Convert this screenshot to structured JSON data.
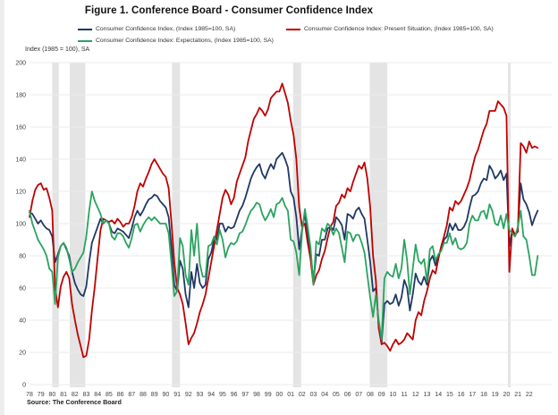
{
  "page": {
    "title": "Figure 1. Conference Board - Consumer Confidence Index",
    "y_axis_title": "Index (1985 = 100), SA",
    "source": "Source: The Conference Board"
  },
  "legend": {
    "left_items": [
      {
        "label": "Consumer Confidence Index, (Index 1985=100, SA)",
        "color": "#1f3864"
      },
      {
        "label": "Consumer Confidence Index: Expectations, (Index 1985=100, SA)",
        "color": "#2aa35f"
      }
    ],
    "right_items": [
      {
        "label": "Consumer Confidence Index: Present Situation, (Index 1985=100, SA)",
        "color": "#c00000"
      }
    ]
  },
  "chart_data": {
    "type": "line",
    "title": "Figure 1. Conference Board - Consumer Confidence Index",
    "ylabel": "Index (1985 = 100), SA",
    "ylim": [
      0,
      200
    ],
    "y_tick_step": 20,
    "grid": "horizontal",
    "legend_position": "top",
    "x_start_year": 1978,
    "x_step_years": 0.25,
    "x_tick_labels": [
      "78",
      "79",
      "80",
      "81",
      "82",
      "83",
      "84",
      "85",
      "86",
      "87",
      "88",
      "89",
      "90",
      "91",
      "92",
      "93",
      "94",
      "95",
      "96",
      "97",
      "98",
      "99",
      "00",
      "01",
      "02",
      "03",
      "04",
      "05",
      "06",
      "07",
      "08",
      "09",
      "10",
      "11",
      "12",
      "13",
      "14",
      "15",
      "16",
      "17",
      "18",
      "19",
      "20",
      "21",
      "22"
    ],
    "recession_bands_years": [
      [
        1980.0,
        1980.58
      ],
      [
        1981.54,
        1982.92
      ],
      [
        1990.54,
        1991.25
      ],
      [
        2001.21,
        2001.92
      ],
      [
        2007.96,
        2009.5
      ],
      [
        2020.12,
        2020.37
      ]
    ],
    "band_color": "#e4e4e4",
    "grid_color": "#ebebeb",
    "series": [
      {
        "name": "Consumer Confidence Index, (Index 1985=100, SA)",
        "color": "#1f3864",
        "values": [
          107,
          106,
          103,
          100,
          102,
          99,
          97,
          96,
          92,
          76,
          81,
          86,
          88,
          84,
          80,
          70,
          63,
          59,
          56,
          55,
          61,
          76,
          88,
          93,
          98,
          103,
          100,
          102,
          100,
          95,
          94,
          97,
          96,
          95,
          93,
          91,
          97,
          104,
          108,
          105,
          108,
          112,
          115,
          116,
          118,
          117,
          114,
          112,
          110,
          104,
          85,
          62,
          58,
          77,
          72,
          56,
          48,
          70,
          60,
          75,
          63,
          60,
          62,
          78,
          82,
          90,
          90,
          100,
          100,
          95,
          98,
          97,
          98,
          103,
          108,
          111,
          116,
          122,
          128,
          132,
          135,
          137,
          131,
          128,
          133,
          137,
          134,
          140,
          142,
          144,
          140,
          135,
          120,
          116,
          104,
          84,
          96,
          106,
          94,
          82,
          64,
          81,
          80,
          90,
          90,
          97,
          98,
          96,
          104,
          102,
          99,
          90,
          106,
          105,
          103,
          108,
          110,
          106,
          103,
          90,
          76,
          58,
          60,
          38,
          26,
          50,
          52,
          50,
          51,
          56,
          49,
          54,
          65,
          60,
          46,
          56,
          69,
          64,
          62,
          67,
          62,
          77,
          80,
          74,
          80,
          84,
          90,
          92,
          100,
          96,
          100,
          96,
          96,
          98,
          102,
          110,
          117,
          118,
          120,
          125,
          128,
          127,
          136,
          133,
          128,
          130,
          133,
          127,
          131,
          86,
          96,
          92,
          97,
          125,
          115,
          112,
          107,
          99,
          104,
          108
        ]
      },
      {
        "name": "Consumer Confidence Index: Present Situation, (Index 1985=100, SA)",
        "color": "#c00000",
        "values": [
          104,
          114,
          121,
          124,
          125,
          121,
          122,
          116,
          108,
          60,
          48,
          61,
          67,
          70,
          66,
          50,
          40,
          31,
          24,
          17,
          18,
          28,
          46,
          61,
          79,
          96,
          103,
          102,
          101,
          102,
          100,
          103,
          101,
          98,
          100,
          100,
          104,
          111,
          120,
          125,
          123,
          128,
          132,
          137,
          140,
          137,
          134,
          131,
          129,
          122,
          100,
          76,
          60,
          56,
          50,
          38,
          25,
          29,
          32,
          38,
          45,
          50,
          56,
          66,
          76,
          86,
          96,
          106,
          116,
          121,
          118,
          112,
          116,
          126,
          131,
          136,
          141,
          151,
          158,
          165,
          168,
          172,
          170,
          167,
          171,
          178,
          180,
          182,
          182,
          187,
          181,
          175,
          164,
          155,
          140,
          110,
          98,
          100,
          88,
          78,
          62,
          68,
          71,
          78,
          83,
          91,
          98,
          101,
          111,
          113,
          118,
          116,
          122,
          120,
          126,
          131,
          136,
          134,
          138,
          128,
          110,
          80,
          65,
          35,
          25,
          26,
          24,
          21,
          25,
          28,
          25,
          26,
          28,
          32,
          30,
          28,
          40,
          45,
          43,
          52,
          58,
          66,
          71,
          69,
          78,
          86,
          92,
          99,
          110,
          108,
          114,
          112,
          114,
          118,
          122,
          127,
          135,
          142,
          146,
          152,
          158,
          162,
          170,
          170,
          170,
          176,
          174,
          172,
          167,
          70,
          97,
          93,
          95,
          150,
          148,
          144,
          151,
          147,
          148,
          147
        ]
      },
      {
        "name": "Consumer Confidence Index: Expectations, (Index 1985=100, SA)",
        "color": "#2aa35f",
        "values": [
          108,
          100,
          95,
          90,
          87,
          84,
          80,
          72,
          70,
          50,
          79,
          86,
          88,
          85,
          78,
          70,
          72,
          76,
          79,
          82,
          92,
          108,
          120,
          114,
          110,
          106,
          100,
          102,
          100,
          92,
          90,
          94,
          94,
          92,
          88,
          85,
          91,
          99,
          100,
          95,
          99,
          102,
          104,
          102,
          104,
          102,
          100,
          100,
          100,
          94,
          75,
          55,
          58,
          91,
          86,
          68,
          62,
          96,
          80,
          100,
          75,
          67,
          67,
          86,
          87,
          92,
          87,
          96,
          90,
          79,
          85,
          88,
          87,
          89,
          94,
          95,
          99,
          104,
          108,
          110,
          113,
          112,
          106,
          102,
          105,
          109,
          104,
          112,
          113,
          116,
          111,
          108,
          90,
          89,
          82,
          68,
          95,
          109,
          98,
          85,
          62,
          89,
          87,
          97,
          95,
          100,
          98,
          93,
          97,
          94,
          85,
          76,
          95,
          94,
          89,
          93,
          93,
          88,
          82,
          68,
          54,
          42,
          56,
          40,
          28,
          66,
          70,
          68,
          67,
          75,
          66,
          72,
          90,
          77,
          56,
          72,
          87,
          77,
          75,
          78,
          64,
          84,
          86,
          77,
          81,
          83,
          88,
          88,
          94,
          87,
          91,
          85,
          84,
          85,
          88,
          100,
          105,
          102,
          102,
          107,
          108,
          103,
          112,
          108,
          100,
          99,
          105,
          97,
          106,
          96,
          94,
          92,
          98,
          108,
          92,
          90,
          80,
          68,
          68,
          80
        ]
      }
    ],
    "source": "Source: The Conference Board"
  }
}
